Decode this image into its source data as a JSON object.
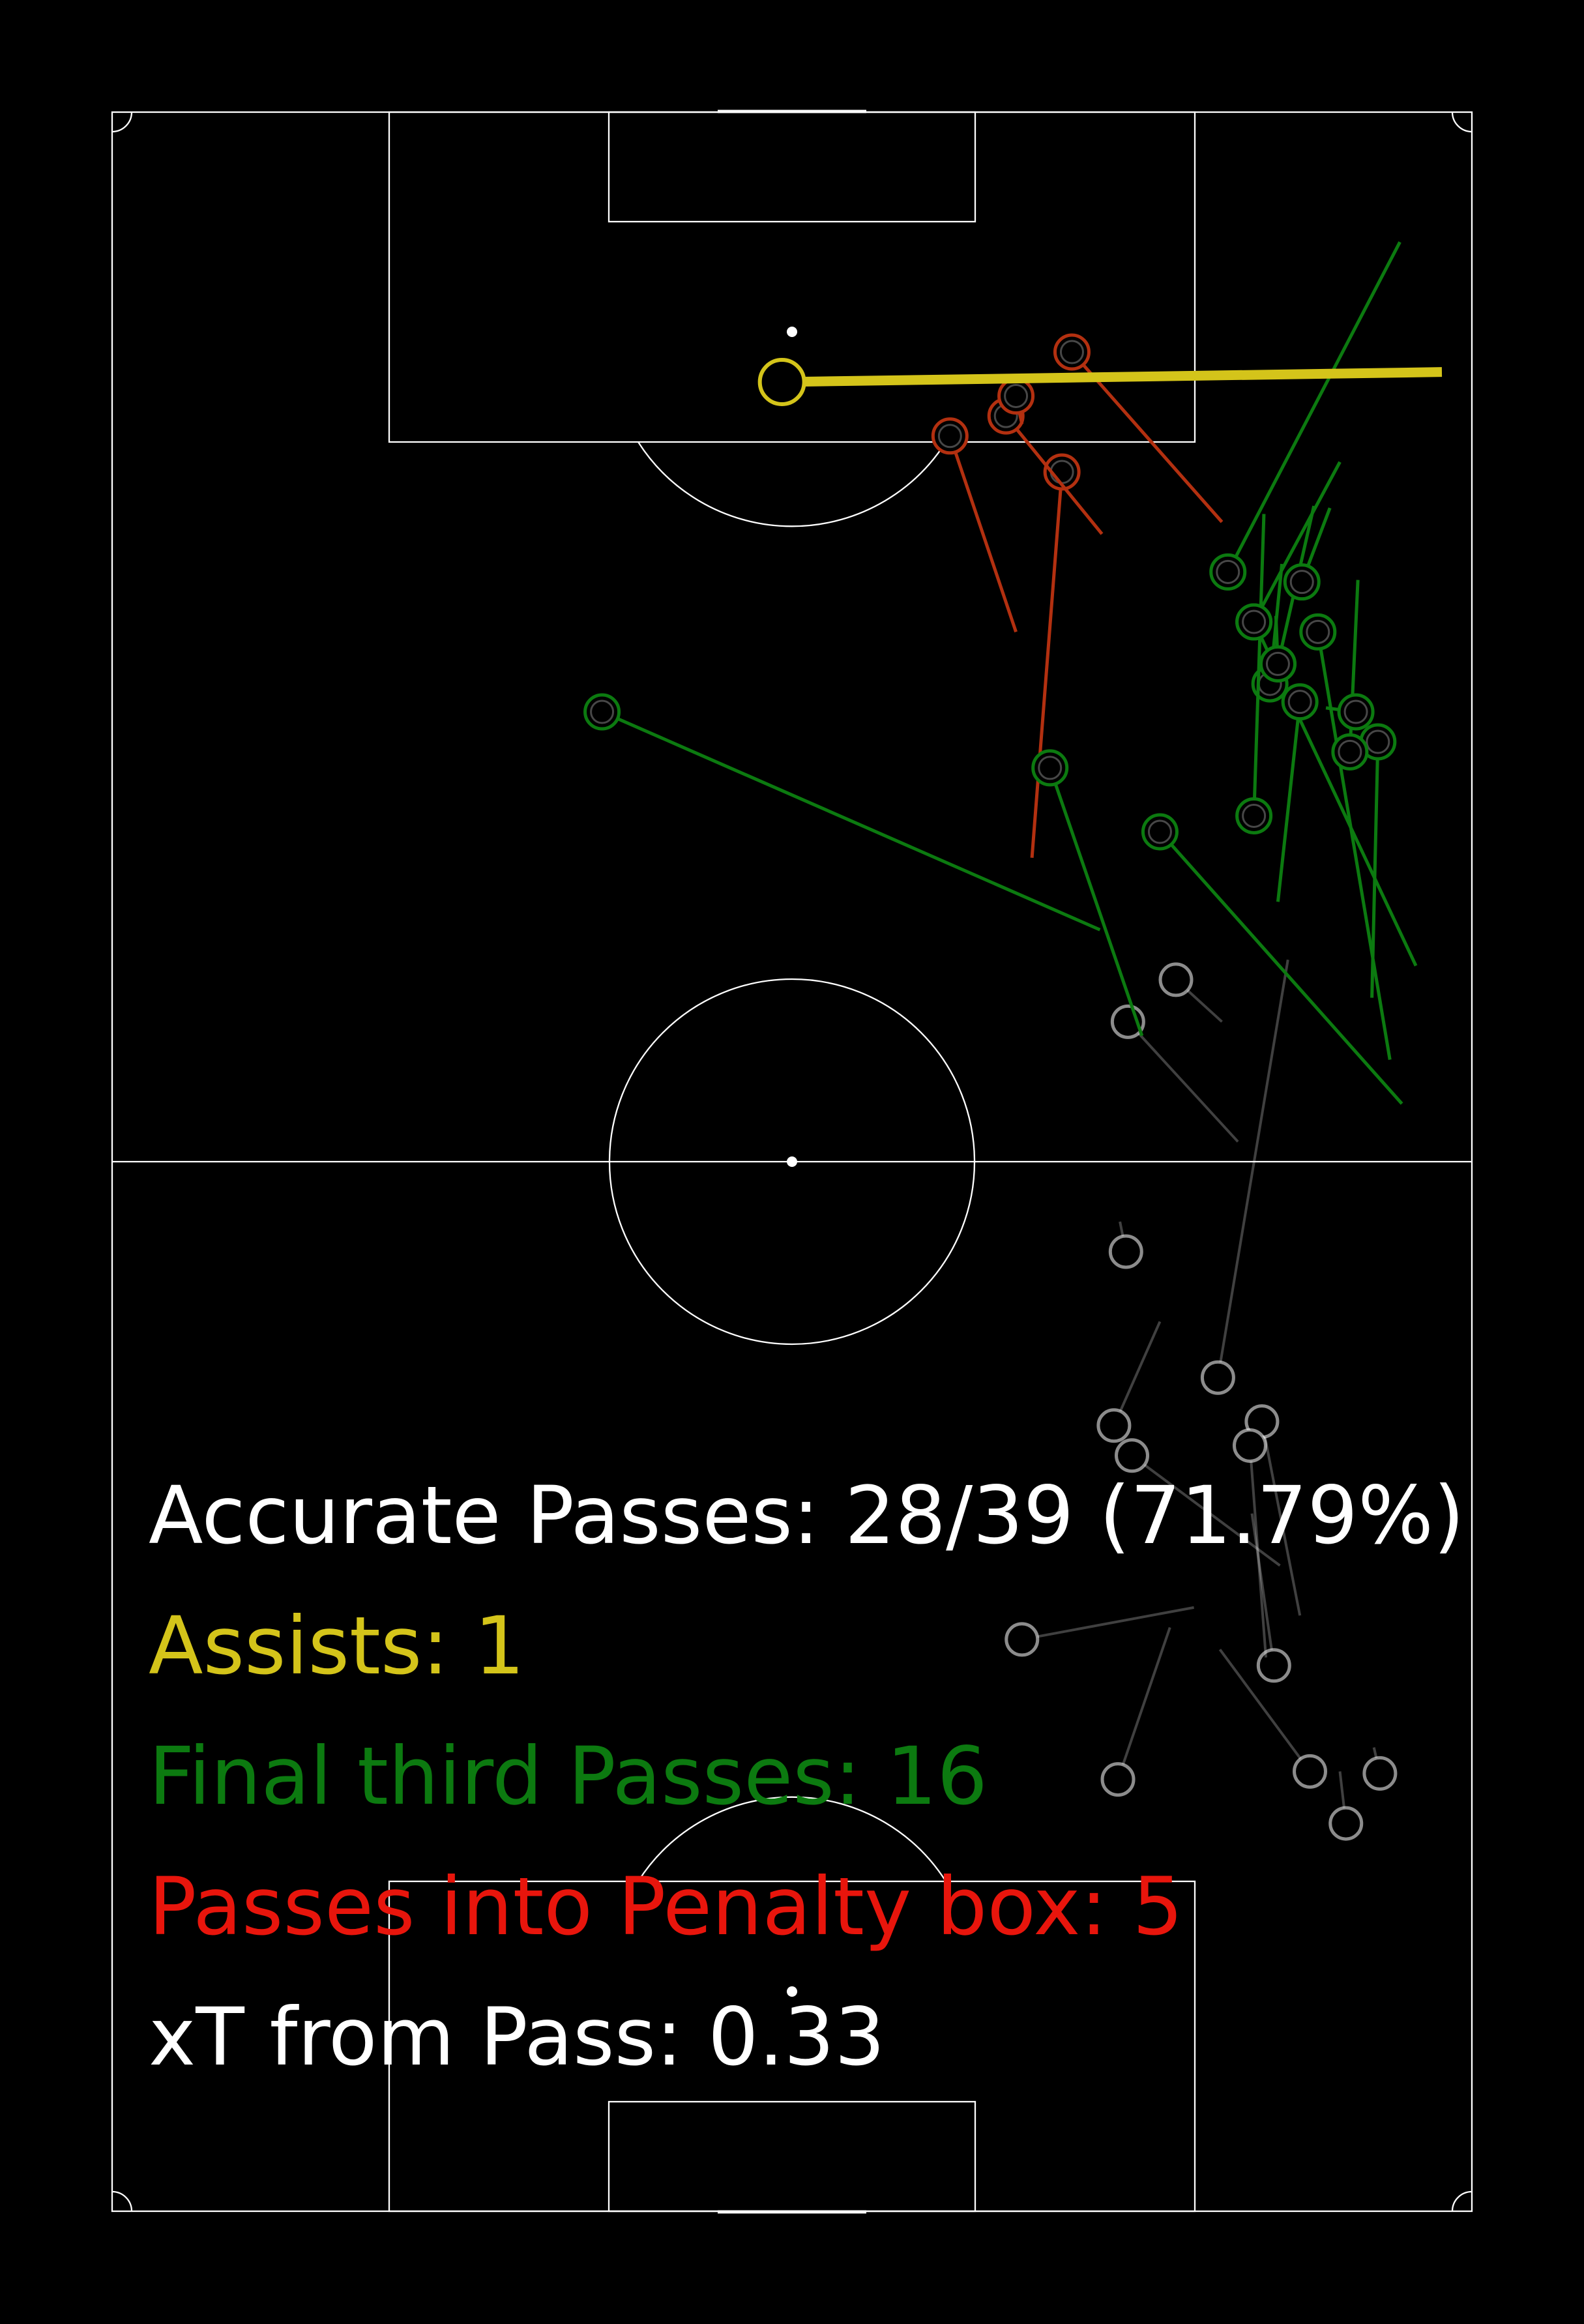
{
  "colors": {
    "background": "#000000",
    "pitch_lines": "#ffffff",
    "pass": "#ffffff",
    "assist": "#d4c41a",
    "final_third": "#0c7a10",
    "penalty_box": "#b33010"
  },
  "stats": {
    "accurate_passes": "Accurate Passes: 28/39 (71.79%)",
    "assists": "Assists: 1",
    "final_third_passes": "Final third Passes: 16",
    "passes_into_penalty_box": "Passes into Penalty box: 5",
    "xt_from_pass": "xT from Pass: 0.33"
  },
  "stat_colors": {
    "accurate_passes": "#ffffff",
    "assists": "#d4c41a",
    "final_third_passes": "#0c7a10",
    "passes_into_penalty_box": "#e8150c",
    "xt_from_pass": "#ffffff"
  },
  "chart_data": {
    "type": "scatter",
    "pitch": {
      "length": 105,
      "width": 68,
      "orientation": "vertical",
      "attacking_direction": "up"
    },
    "passes": [
      {
        "category": "assist",
        "start": [
          91.5,
          33.5
        ],
        "end": [
          92.0,
          66.5
        ]
      },
      {
        "category": "penalty_box",
        "start": [
          93.0,
          48.0
        ],
        "end": [
          84.5,
          55.5
        ]
      },
      {
        "category": "penalty_box",
        "start": [
          88.8,
          41.9
        ],
        "end": [
          79.0,
          45.2
        ]
      },
      {
        "category": "penalty_box",
        "start": [
          87.0,
          47.5
        ],
        "end": [
          67.7,
          46.0
        ]
      },
      {
        "category": "penalty_box",
        "start": [
          89.8,
          44.7
        ],
        "end": [
          83.9,
          49.5
        ]
      },
      {
        "category": "penalty_box",
        "start": [
          90.8,
          45.2
        ],
        "end": [
          89.4,
          45.5
        ]
      },
      {
        "category": "final_third",
        "start": [
          75.0,
          24.5
        ],
        "end": [
          64.1,
          49.4
        ]
      },
      {
        "category": "final_third",
        "start": [
          82.0,
          55.8
        ],
        "end": [
          98.5,
          64.4
        ]
      },
      {
        "category": "final_third",
        "start": [
          79.0,
          60.3
        ],
        "end": [
          57.6,
          63.9
        ]
      },
      {
        "category": "final_third",
        "start": [
          79.5,
          57.1
        ],
        "end": [
          62.3,
          65.2
        ]
      },
      {
        "category": "final_third",
        "start": [
          75.5,
          59.4
        ],
        "end": [
          65.5,
          58.3
        ]
      },
      {
        "category": "final_third",
        "start": [
          76.4,
          57.9
        ],
        "end": [
          82.4,
          58.5
        ]
      },
      {
        "category": "final_third",
        "start": [
          73.5,
          63.3
        ],
        "end": [
          60.7,
          63.0
        ]
      },
      {
        "category": "final_third",
        "start": [
          73.0,
          61.9
        ],
        "end": [
          81.6,
          62.3
        ]
      },
      {
        "category": "final_third",
        "start": [
          75.0,
          62.2
        ],
        "end": [
          75.2,
          60.7
        ]
      },
      {
        "category": "final_third",
        "start": [
          72.2,
          46.9
        ],
        "end": [
          58.8,
          51.5
        ]
      },
      {
        "category": "final_third",
        "start": [
          69.0,
          52.4
        ],
        "end": [
          55.4,
          64.5
        ]
      },
      {
        "category": "final_third",
        "start": [
          69.8,
          57.1
        ],
        "end": [
          84.9,
          57.6
        ]
      },
      {
        "category": "final_third",
        "start": [
          77.4,
          58.3
        ],
        "end": [
          85.3,
          60.1
        ]
      },
      {
        "category": "final_third",
        "start": [
          79.5,
          57.1
        ],
        "end": [
          87.5,
          61.4
        ]
      },
      {
        "category": "final_third",
        "start": [
          81.5,
          59.5
        ],
        "end": [
          85.2,
          60.9
        ]
      },
      {
        "category": "final_third",
        "start": [
          77.4,
          58.3
        ],
        "end": [
          79.8,
          58.2
        ]
      },
      {
        "category": "pass",
        "start": [
          59.5,
          50.8
        ],
        "end": [
          53.5,
          56.3
        ]
      },
      {
        "category": "pass",
        "start": [
          61.6,
          53.2
        ],
        "end": [
          59.5,
          55.5
        ]
      },
      {
        "category": "pass",
        "start": [
          48.0,
          50.7
        ],
        "end": [
          49.5,
          50.4
        ]
      },
      {
        "category": "pass",
        "start": [
          41.7,
          55.3
        ],
        "end": [
          62.6,
          58.8
        ]
      },
      {
        "category": "pass",
        "start": [
          39.5,
          57.5
        ],
        "end": [
          29.8,
          59.4
        ]
      },
      {
        "category": "pass",
        "start": [
          39.3,
          50.1
        ],
        "end": [
          44.5,
          52.4
        ]
      },
      {
        "category": "pass",
        "start": [
          37.8,
          51.0
        ],
        "end": [
          32.3,
          58.4
        ]
      },
      {
        "category": "pass",
        "start": [
          27.3,
          58.1
        ],
        "end": [
          34.9,
          57.0
        ]
      },
      {
        "category": "pass",
        "start": [
          19.4,
          61.7
        ],
        "end": [
          22.0,
          61.4
        ]
      },
      {
        "category": "pass",
        "start": [
          22.0,
          59.9
        ],
        "end": [
          28.1,
          55.4
        ]
      },
      {
        "category": "pass",
        "start": [
          28.6,
          45.5
        ],
        "end": [
          30.2,
          54.1
        ]
      },
      {
        "category": "pass",
        "start": [
          21.6,
          50.3
        ],
        "end": [
          29.2,
          52.9
        ]
      },
      {
        "category": "pass",
        "start": [
          21.9,
          63.4
        ],
        "end": [
          23.2,
          63.1
        ]
      },
      {
        "category": "pass",
        "start": [
          38.3,
          56.9
        ],
        "end": [
          27.7,
          57.7
        ]
      }
    ]
  }
}
